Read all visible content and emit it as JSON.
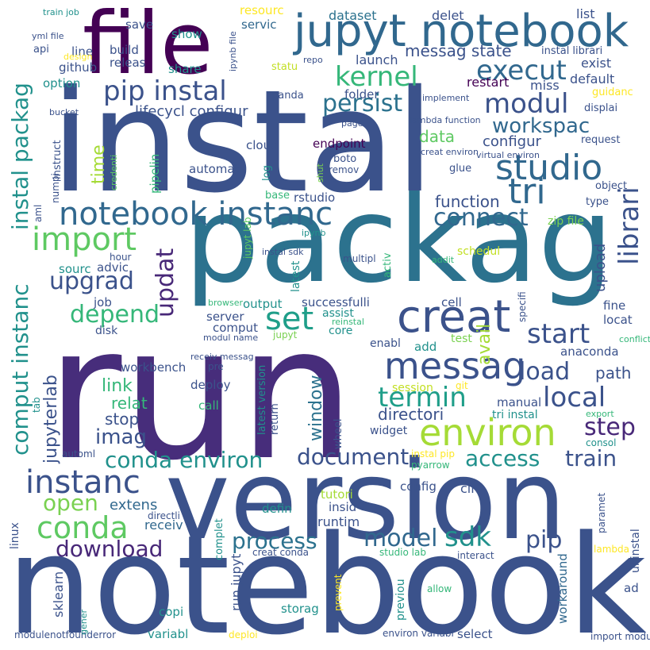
{
  "words": [
    {
      "text": "run",
      "color": "#472d7b"
    },
    {
      "text": "notebook",
      "color": "#3b528b"
    },
    {
      "text": "packag",
      "color": "#2c728e"
    },
    {
      "text": "instal",
      "color": "#3b528b"
    },
    {
      "text": "version",
      "color": "#3b528b"
    },
    {
      "text": "file",
      "color": "#440154"
    },
    {
      "text": "jupyt notebook",
      "color": "#31688e"
    },
    {
      "text": "creat",
      "color": "#3b528b"
    },
    {
      "text": "environ",
      "color": "#a5db36"
    },
    {
      "text": "messag",
      "color": "#3b528b"
    },
    {
      "text": "notebook instanc",
      "color": "#31688e"
    },
    {
      "text": "import",
      "color": "#5ec962"
    },
    {
      "text": "instanc",
      "color": "#3b528b"
    },
    {
      "text": "conda",
      "color": "#5ec962"
    },
    {
      "text": "tri",
      "color": "#31688e"
    },
    {
      "text": "studio",
      "color": "#31688e"
    },
    {
      "text": "kernel",
      "color": "#35b779"
    },
    {
      "text": "execut",
      "color": "#31688e"
    },
    {
      "text": "modul",
      "color": "#3b528b"
    },
    {
      "text": "workspac",
      "color": "#31688e"
    },
    {
      "text": "librari",
      "color": "#3b528b"
    },
    {
      "text": "pip instal",
      "color": "#3b528b"
    },
    {
      "text": "persist",
      "color": "#2c728e"
    },
    {
      "text": "connect",
      "color": "#31688e"
    },
    {
      "text": "updat",
      "color": "#482878"
    },
    {
      "text": "upgrad",
      "color": "#3b528b"
    },
    {
      "text": "depend",
      "color": "#35b779"
    },
    {
      "text": "set",
      "color": "#1f9e89"
    },
    {
      "text": "start",
      "color": "#3b528b"
    },
    {
      "text": "termin",
      "color": "#1f9e89"
    },
    {
      "text": "local",
      "color": "#3b528b"
    },
    {
      "text": "load",
      "color": "#3b528b"
    },
    {
      "text": "step",
      "color": "#482878"
    },
    {
      "text": "train",
      "color": "#3b528b"
    },
    {
      "text": "access",
      "color": "#21918c"
    },
    {
      "text": "document",
      "color": "#3b528b"
    },
    {
      "text": "conda environ",
      "color": "#21918c"
    },
    {
      "text": "imag",
      "color": "#3b528b"
    },
    {
      "text": "download",
      "color": "#482878"
    },
    {
      "text": "model",
      "color": "#31688e"
    },
    {
      "text": "sdk",
      "color": "#21918c"
    },
    {
      "text": "pip",
      "color": "#3b528b"
    },
    {
      "text": "process",
      "color": "#2c728e"
    },
    {
      "text": "open",
      "color": "#7ad151"
    },
    {
      "text": "comput instanc",
      "color": "#21918c"
    },
    {
      "text": "instal packag",
      "color": "#21918c"
    },
    {
      "text": "jupyterlab",
      "color": "#3b528b"
    },
    {
      "text": "window",
      "color": "#2c728e"
    },
    {
      "text": "avail",
      "color": "#a5db36"
    },
    {
      "text": "time",
      "color": "#a5db36"
    },
    {
      "text": "function",
      "color": "#3b528b"
    },
    {
      "text": "data",
      "color": "#5ec962"
    },
    {
      "text": "directori",
      "color": "#3b528b"
    },
    {
      "text": "messag state",
      "color": "#3b528b"
    },
    {
      "text": "upload",
      "color": "#3b528b"
    },
    {
      "text": "path",
      "color": "#3b528b"
    },
    {
      "text": "extens",
      "color": "#31688e"
    },
    {
      "text": "link",
      "color": "#35b779"
    },
    {
      "text": "relat",
      "color": "#35b779"
    },
    {
      "text": "stop",
      "color": "#3b528b"
    },
    {
      "text": "receiv",
      "color": "#31688e"
    },
    {
      "text": "runtim",
      "color": "#3b528b"
    },
    {
      "text": "run jupyt",
      "color": "#3b528b"
    },
    {
      "text": "sklearn",
      "color": "#3b528b"
    },
    {
      "text": "workaround",
      "color": "#31688e"
    },
    {
      "text": "configur",
      "color": "#3b528b"
    },
    {
      "text": "lifecycl configur",
      "color": "#3b528b"
    },
    {
      "text": "launch",
      "color": "#3b528b"
    },
    {
      "text": "restart",
      "color": "#440154"
    },
    {
      "text": "miss",
      "color": "#3b528b"
    },
    {
      "text": "default",
      "color": "#3b528b"
    },
    {
      "text": "exist",
      "color": "#3b528b"
    },
    {
      "text": "list",
      "color": "#3b528b"
    },
    {
      "text": "delet",
      "color": "#3b528b"
    },
    {
      "text": "dataset",
      "color": "#2c728e"
    },
    {
      "text": "resourc",
      "color": "#fde725"
    },
    {
      "text": "servic",
      "color": "#31688e"
    },
    {
      "text": "show",
      "color": "#21918c"
    },
    {
      "text": "save",
      "color": "#3b528b"
    },
    {
      "text": "build",
      "color": "#3b528b"
    },
    {
      "text": "releas",
      "color": "#3b528b"
    },
    {
      "text": "share",
      "color": "#21918c"
    },
    {
      "text": "line",
      "color": "#3b528b"
    },
    {
      "text": "github",
      "color": "#3b528b"
    },
    {
      "text": "option",
      "color": "#21918c"
    },
    {
      "text": "api",
      "color": "#3b528b"
    },
    {
      "text": "yml file",
      "color": "#3b528b"
    },
    {
      "text": "train job",
      "color": "#21918c"
    },
    {
      "text": "statu",
      "color": "#c2df23"
    },
    {
      "text": "instal librari",
      "color": "#3b528b"
    },
    {
      "text": "guidanc",
      "color": "#fde725"
    },
    {
      "text": "displai",
      "color": "#3b528b"
    },
    {
      "text": "request",
      "color": "#3b528b"
    },
    {
      "text": "object",
      "color": "#3b528b"
    },
    {
      "text": "type",
      "color": "#3b528b"
    },
    {
      "text": "folder",
      "color": "#3b528b"
    },
    {
      "text": "panda",
      "color": "#3b528b"
    },
    {
      "text": "endpoint",
      "color": "#440154"
    },
    {
      "text": "boto",
      "color": "#3b528b"
    },
    {
      "text": "glue",
      "color": "#3b528b"
    },
    {
      "text": "cloud",
      "color": "#3b528b"
    },
    {
      "text": "automat",
      "color": "#3b528b"
    },
    {
      "text": "base",
      "color": "#35b779"
    },
    {
      "text": "rstudio",
      "color": "#3b528b"
    },
    {
      "text": "pipelin",
      "color": "#35b779"
    },
    {
      "text": "log",
      "color": "#21918c"
    },
    {
      "text": "zip file",
      "color": "#7ad151"
    },
    {
      "text": "schedul",
      "color": "#c2df23"
    },
    {
      "text": "sourc",
      "color": "#21918c"
    },
    {
      "text": "advic",
      "color": "#3b528b"
    },
    {
      "text": "job",
      "color": "#3b528b"
    },
    {
      "text": "output",
      "color": "#21918c"
    },
    {
      "text": "successfulli",
      "color": "#3b528b"
    },
    {
      "text": "cell",
      "color": "#3b528b"
    },
    {
      "text": "fine",
      "color": "#3b528b"
    },
    {
      "text": "locat",
      "color": "#3b528b"
    },
    {
      "text": "server",
      "color": "#3b528b"
    },
    {
      "text": "comput",
      "color": "#3b528b"
    },
    {
      "text": "assist",
      "color": "#21918c"
    },
    {
      "text": "core",
      "color": "#21918c"
    },
    {
      "text": "test",
      "color": "#7ad151"
    },
    {
      "text": "add",
      "color": "#21918c"
    },
    {
      "text": "enabl",
      "color": "#3b528b"
    },
    {
      "text": "anaconda",
      "color": "#3b528b"
    },
    {
      "text": "deploy",
      "color": "#3b528b"
    },
    {
      "text": "call",
      "color": "#35b779"
    },
    {
      "text": "manual",
      "color": "#3b528b"
    },
    {
      "text": "tri instal",
      "color": "#21918c"
    },
    {
      "text": "widget",
      "color": "#3b528b"
    },
    {
      "text": "session",
      "color": "#c2df23"
    },
    {
      "text": "config",
      "color": "#3b528b"
    },
    {
      "text": "cli",
      "color": "#3b528b"
    },
    {
      "text": "tutori",
      "color": "#a5db36"
    },
    {
      "text": "insid",
      "color": "#3b528b"
    },
    {
      "text": "defin",
      "color": "#21918c"
    },
    {
      "text": "copi",
      "color": "#21918c"
    },
    {
      "text": "storag",
      "color": "#21918c"
    },
    {
      "text": "variabl",
      "color": "#21918c"
    },
    {
      "text": "select",
      "color": "#3b528b"
    },
    {
      "text": "previou",
      "color": "#21918c"
    },
    {
      "text": "ad",
      "color": "#3b528b"
    },
    {
      "text": "allow",
      "color": "#35b779"
    },
    {
      "text": "lambda",
      "color": "#fde725"
    },
    {
      "text": "interact",
      "color": "#3b528b"
    },
    {
      "text": "studio lab",
      "color": "#35b779"
    },
    {
      "text": "creat conda",
      "color": "#3b528b"
    },
    {
      "text": "prevent",
      "color": "#fde725"
    },
    {
      "text": "complet",
      "color": "#21918c"
    },
    {
      "text": "deploi",
      "color": "#fde725"
    },
    {
      "text": "environ variabl",
      "color": "#3b528b"
    },
    {
      "text": "import modul",
      "color": "#3b528b"
    },
    {
      "text": "modulenotfounderror",
      "color": "#3b528b"
    },
    {
      "text": "paramet",
      "color": "#3b528b"
    },
    {
      "text": "directli",
      "color": "#3b528b"
    },
    {
      "text": "automl",
      "color": "#3b528b"
    },
    {
      "text": "instal pip",
      "color": "#fde725"
    },
    {
      "text": "pyarrow",
      "color": "#35b779"
    },
    {
      "text": "consol",
      "color": "#21918c"
    },
    {
      "text": "export",
      "color": "#35b779"
    },
    {
      "text": "conflict",
      "color": "#35b779"
    },
    {
      "text": "git",
      "color": "#fde725"
    },
    {
      "text": "uninstal",
      "color": "#3b528b"
    },
    {
      "text": "linux",
      "color": "#3b528b"
    },
    {
      "text": "pre",
      "color": "#3b528b"
    },
    {
      "text": "receiv messag",
      "color": "#3b528b"
    },
    {
      "text": "workbench",
      "color": "#3b528b"
    },
    {
      "text": "modul name",
      "color": "#3b528b"
    },
    {
      "text": "disk",
      "color": "#3b528b"
    },
    {
      "text": "browser",
      "color": "#35b779"
    },
    {
      "text": "jupyt",
      "color": "#7ad151"
    },
    {
      "text": "reinstal",
      "color": "#35b779"
    },
    {
      "text": "gener",
      "color": "#21918c"
    },
    {
      "text": "addit",
      "color": "#35b779"
    },
    {
      "text": "multipl",
      "color": "#3b528b"
    },
    {
      "text": "instal sdk",
      "color": "#3b528b"
    },
    {
      "text": "latest version",
      "color": "#21918c"
    },
    {
      "text": "return",
      "color": "#3b528b"
    },
    {
      "text": "ipynb",
      "color": "#21918c"
    },
    {
      "text": "hour",
      "color": "#3b528b"
    },
    {
      "text": "wheel",
      "color": "#3b528b"
    },
    {
      "text": "specifi",
      "color": "#3b528b"
    },
    {
      "text": "jupyt lab",
      "color": "#5ec962"
    },
    {
      "text": "latest",
      "color": "#21918c"
    },
    {
      "text": "bucket",
      "color": "#3b528b"
    },
    {
      "text": "activ",
      "color": "#35b779"
    },
    {
      "text": "remov",
      "color": "#3b528b"
    },
    {
      "text": "virtual environ",
      "color": "#3b528b"
    },
    {
      "text": "creat environ",
      "color": "#3b528b"
    },
    {
      "text": "lambda function",
      "color": "#3b528b"
    },
    {
      "text": "implement",
      "color": "#3b528b"
    },
    {
      "text": "page",
      "color": "#3b528b"
    },
    {
      "text": "repo",
      "color": "#3b528b"
    },
    {
      "text": "design",
      "color": "#fde725"
    },
    {
      "text": "numpi",
      "color": "#3b528b"
    },
    {
      "text": "instruct",
      "color": "#3b528b"
    },
    {
      "text": "aml",
      "color": "#3b528b"
    },
    {
      "text": "tab",
      "color": "#21918c"
    },
    {
      "text": "credenti",
      "color": "#5ec962"
    },
    {
      "text": "shut",
      "color": "#7ad151"
    },
    {
      "text": "ipynb file",
      "color": "#3b528b"
    }
  ]
}
